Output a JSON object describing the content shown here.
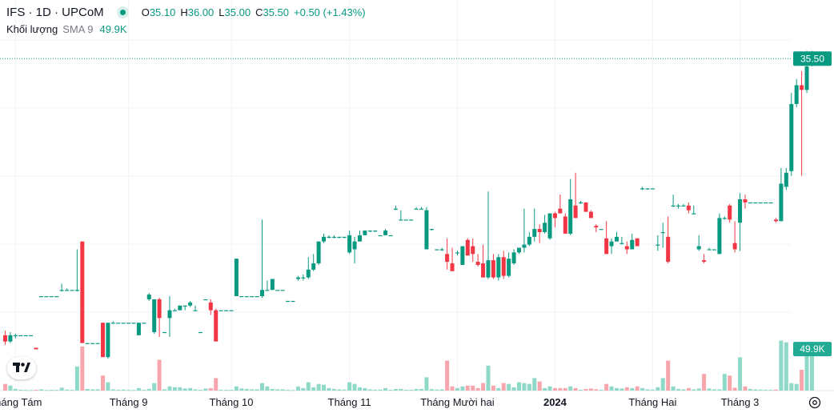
{
  "header": {
    "title": "IFS · 1D · UPCoM",
    "ohlc": [
      {
        "k": "O",
        "v": "35.10"
      },
      {
        "k": "H",
        "v": "36.00"
      },
      {
        "k": "L",
        "v": "35.00"
      },
      {
        "k": "C",
        "v": "35.50"
      },
      {
        "k": "",
        "v": "+0.50 (+1.43%)"
      }
    ],
    "volume_label": "Khối lượng",
    "volume_sma": "SMA 9",
    "volume_value": "49.9K"
  },
  "colors": {
    "up": "#089981",
    "down": "#f23645",
    "vol_up": "#8fd9c8",
    "vol_down": "#f7a6ad",
    "grid": "#f0f3fa",
    "axis_text": "#131722"
  },
  "icons": {
    "logo": "tradingview-logo-icon",
    "settings": "settings-gear-icon"
  },
  "chart_data": {
    "type": "candlestick",
    "price_ylim": [
      16,
      37
    ],
    "volume_ylim": [
      0,
      100000
    ],
    "grid": true,
    "last_price_label": "35.50",
    "last_volume_label": "49.9K",
    "x_tick_labels": [
      {
        "label": "Tháng Tám",
        "index": 2,
        "bold": false
      },
      {
        "label": "Tháng 9",
        "index": 24,
        "bold": false
      },
      {
        "label": "Tháng 10",
        "index": 44,
        "bold": false
      },
      {
        "label": "Tháng 11",
        "index": 67,
        "bold": false
      },
      {
        "label": "Tháng Mười hai",
        "index": 88,
        "bold": false
      },
      {
        "label": "2024",
        "index": 107,
        "bold": true
      },
      {
        "label": "Tháng Hai",
        "index": 126,
        "bold": false
      },
      {
        "label": "Tháng 3",
        "index": 143,
        "bold": false
      }
    ],
    "candles": [
      [
        17.8,
        18.1,
        17.2,
        17.4,
        8000
      ],
      [
        17.4,
        18.0,
        17.3,
        17.8,
        6000
      ],
      [
        17.8,
        17.9,
        17.6,
        17.8,
        2000
      ],
      [
        17.8,
        17.8,
        17.8,
        17.8,
        1000
      ],
      [
        17.8,
        17.8,
        17.8,
        17.8,
        800
      ],
      [
        17.8,
        17.8,
        17.8,
        17.8,
        700
      ],
      [
        17.0,
        17.0,
        16.9,
        16.9,
        900
      ],
      [
        20.3,
        20.3,
        20.3,
        20.3,
        1500
      ],
      [
        20.3,
        20.3,
        20.3,
        20.3,
        700
      ],
      [
        20.3,
        20.3,
        20.3,
        20.3,
        900
      ],
      [
        20.3,
        20.3,
        20.3,
        20.3,
        800
      ],
      [
        20.7,
        21.1,
        20.6,
        20.7,
        3500
      ],
      [
        20.7,
        20.8,
        20.7,
        20.7,
        1200
      ],
      [
        20.7,
        20.7,
        20.7,
        20.7,
        900
      ],
      [
        20.7,
        23.3,
        20.6,
        20.7,
        29000
      ],
      [
        23.8,
        23.8,
        17.3,
        17.3,
        53000
      ],
      [
        17.3,
        17.3,
        17.3,
        17.3,
        2000
      ],
      [
        17.3,
        17.3,
        17.3,
        17.3,
        1500
      ],
      [
        17.3,
        17.3,
        17.3,
        17.3,
        1500
      ],
      [
        18.6,
        18.6,
        16.4,
        16.4,
        18000
      ],
      [
        16.4,
        18.6,
        16.3,
        18.6,
        10000
      ],
      [
        18.6,
        18.7,
        18.6,
        18.6,
        1500
      ],
      [
        18.6,
        18.6,
        18.6,
        18.6,
        900
      ],
      [
        18.6,
        18.6,
        18.6,
        18.6,
        1200
      ],
      [
        18.6,
        18.6,
        18.6,
        18.6,
        800
      ],
      [
        18.6,
        18.6,
        18.6,
        18.6,
        700
      ],
      [
        17.8,
        18.6,
        17.8,
        18.6,
        3000
      ],
      [
        18.6,
        18.6,
        18.6,
        18.6,
        900
      ],
      [
        20.1,
        20.5,
        20.0,
        20.4,
        2000
      ],
      [
        18.0,
        20.1,
        17.9,
        20.1,
        9000
      ],
      [
        20.1,
        20.2,
        17.7,
        18.9,
        37000
      ],
      [
        18.0,
        18.0,
        18.0,
        18.0,
        1500
      ],
      [
        18.9,
        20.3,
        17.7,
        19.4,
        5000
      ],
      [
        19.4,
        19.5,
        19.4,
        19.4,
        4000
      ],
      [
        19.4,
        19.7,
        19.4,
        19.7,
        4000
      ],
      [
        19.7,
        19.7,
        19.4,
        19.7,
        2500
      ],
      [
        19.7,
        20.0,
        19.6,
        19.9,
        3000
      ],
      [
        19.4,
        19.7,
        19.4,
        19.4,
        1500
      ],
      [
        18.0,
        18.0,
        18.0,
        18.0,
        900
      ],
      [
        20.1,
        20.1,
        20.1,
        20.1,
        2500
      ],
      [
        19.9,
        20.1,
        19.1,
        19.4,
        3000
      ],
      [
        19.4,
        19.5,
        17.4,
        17.4,
        15000
      ],
      [
        19.4,
        19.4,
        19.4,
        19.4,
        900
      ],
      [
        19.4,
        19.4,
        19.4,
        19.4,
        800
      ],
      [
        19.4,
        19.4,
        19.4,
        19.4,
        900
      ],
      [
        20.3,
        22.7,
        20.3,
        22.7,
        5000
      ],
      [
        20.3,
        20.3,
        20.3,
        20.3,
        2500
      ],
      [
        20.3,
        20.3,
        20.3,
        20.3,
        2000
      ],
      [
        20.3,
        20.3,
        20.3,
        20.3,
        1500
      ],
      [
        20.3,
        20.3,
        20.3,
        20.3,
        1500
      ],
      [
        20.3,
        25.2,
        20.2,
        20.7,
        9000
      ],
      [
        20.7,
        21.3,
        20.7,
        20.7,
        5000
      ],
      [
        20.7,
        21.4,
        20.7,
        21.4,
        2000
      ],
      [
        20.7,
        20.7,
        20.7,
        20.7,
        1500
      ],
      [
        20.7,
        20.7,
        20.7,
        20.7,
        1500
      ],
      [
        20.0,
        20.0,
        20.0,
        20.0,
        800
      ],
      [
        20.0,
        20.0,
        20.0,
        20.0,
        700
      ],
      [
        21.4,
        21.6,
        21.3,
        21.5,
        5000
      ],
      [
        21.5,
        21.7,
        21.3,
        21.5,
        3000
      ],
      [
        21.5,
        22.8,
        21.4,
        22.0,
        10000
      ],
      [
        22.0,
        23.0,
        21.9,
        22.4,
        4000
      ],
      [
        22.4,
        23.8,
        22.3,
        23.8,
        8000
      ],
      [
        23.8,
        24.3,
        23.7,
        24.1,
        7000
      ],
      [
        24.1,
        24.2,
        24.0,
        24.1,
        3000
      ],
      [
        24.1,
        24.2,
        24.0,
        24.1,
        2000
      ],
      [
        24.1,
        24.1,
        24.0,
        24.1,
        1500
      ],
      [
        24.1,
        24.1,
        24.0,
        24.1,
        1200
      ],
      [
        23.1,
        24.5,
        23.0,
        24.2,
        10000
      ],
      [
        23.3,
        24.1,
        22.4,
        23.8,
        8000
      ],
      [
        23.8,
        24.5,
        23.8,
        24.2,
        4000
      ],
      [
        24.2,
        24.5,
        24.2,
        24.5,
        3000
      ],
      [
        24.5,
        24.5,
        24.4,
        24.5,
        1500
      ],
      [
        24.5,
        24.5,
        24.4,
        24.5,
        1000
      ],
      [
        24.2,
        24.2,
        24.2,
        24.2,
        1200
      ],
      [
        24.2,
        24.6,
        24.2,
        24.5,
        3000
      ],
      [
        24.2,
        24.2,
        24.2,
        24.2,
        900
      ],
      [
        25.9,
        26.1,
        25.8,
        25.9,
        2000
      ],
      [
        25.2,
        25.8,
        25.2,
        25.2,
        2000
      ],
      [
        25.2,
        25.2,
        25.2,
        25.2,
        1000
      ],
      [
        25.2,
        25.2,
        25.2,
        25.2,
        900
      ],
      [
        25.9,
        26.0,
        25.9,
        25.9,
        2000
      ],
      [
        25.9,
        26.0,
        25.9,
        25.9,
        2000
      ],
      [
        23.3,
        26.0,
        23.3,
        25.8,
        16000
      ],
      [
        24.6,
        24.6,
        24.5,
        24.6,
        1800
      ],
      [
        23.3,
        23.3,
        23.3,
        23.3,
        1200
      ],
      [
        23.3,
        23.4,
        23.2,
        23.3,
        1500
      ],
      [
        23.0,
        24.0,
        22.0,
        22.5,
        36000
      ],
      [
        22.4,
        23.4,
        21.9,
        21.9,
        5000
      ],
      [
        23.1,
        23.2,
        22.9,
        23.1,
        3000
      ],
      [
        22.3,
        23.5,
        22.3,
        23.5,
        5000
      ],
      [
        23.9,
        24.0,
        22.9,
        22.9,
        6000
      ],
      [
        23.5,
        24.0,
        22.5,
        23.0,
        6000
      ],
      [
        22.5,
        23.0,
        22.2,
        22.3,
        3000
      ],
      [
        22.4,
        23.6,
        21.5,
        21.5,
        9000
      ],
      [
        21.5,
        27.0,
        21.4,
        22.6,
        30000
      ],
      [
        22.6,
        23.0,
        21.4,
        21.5,
        6000
      ],
      [
        21.5,
        23.0,
        21.3,
        22.8,
        3000
      ],
      [
        22.8,
        23.2,
        21.4,
        21.6,
        9000
      ],
      [
        21.6,
        23.1,
        21.5,
        22.7,
        8000
      ],
      [
        22.4,
        23.3,
        22.3,
        23.1,
        4000
      ],
      [
        23.1,
        23.4,
        23.0,
        23.4,
        10000
      ],
      [
        23.4,
        25.9,
        23.1,
        23.6,
        9000
      ],
      [
        23.6,
        24.4,
        23.5,
        24.1,
        8000
      ],
      [
        24.1,
        25.9,
        23.8,
        24.6,
        15000
      ],
      [
        24.6,
        24.9,
        23.7,
        24.4,
        11000
      ],
      [
        24.4,
        25.5,
        24.3,
        25.0,
        3000
      ],
      [
        24.0,
        25.6,
        23.9,
        25.6,
        5000
      ],
      [
        25.6,
        25.7,
        24.7,
        25.3,
        3000
      ],
      [
        25.9,
        26.8,
        25.6,
        25.6,
        3000
      ],
      [
        25.4,
        25.6,
        24.3,
        24.3,
        3000
      ],
      [
        24.3,
        27.8,
        24.2,
        26.5,
        5000
      ],
      [
        26.1,
        28.2,
        25.3,
        25.3,
        3000
      ],
      [
        26.3,
        26.4,
        26.2,
        26.3,
        1000
      ],
      [
        26.3,
        26.3,
        25.7,
        25.7,
        2000
      ],
      [
        25.7,
        25.8,
        25.3,
        25.3,
        2500
      ],
      [
        24.8,
        24.9,
        24.4,
        24.7,
        1500
      ],
      [
        24.6,
        24.6,
        24.6,
        24.6,
        1000
      ],
      [
        24.0,
        25.1,
        23.0,
        23.0,
        8000
      ],
      [
        23.5,
        24.0,
        23.0,
        23.8,
        5000
      ],
      [
        23.8,
        24.4,
        23.8,
        24.1,
        3000
      ],
      [
        23.7,
        24.1,
        23.6,
        23.7,
        2500
      ],
      [
        23.5,
        23.8,
        23.0,
        23.3,
        4000
      ],
      [
        23.3,
        24.3,
        23.3,
        23.9,
        3000
      ],
      [
        24.0,
        24.0,
        23.5,
        23.5,
        5000
      ],
      [
        27.2,
        27.3,
        27.1,
        27.2,
        3000
      ],
      [
        27.2,
        27.2,
        27.1,
        27.2,
        1500
      ],
      [
        27.2,
        27.2,
        27.2,
        27.2,
        1200
      ],
      [
        23.6,
        24.2,
        23.2,
        23.6,
        4000
      ],
      [
        24.4,
        25.0,
        23.4,
        24.4,
        15000
      ],
      [
        24.1,
        25.4,
        22.4,
        22.5,
        36000
      ],
      [
        26.1,
        26.8,
        26.0,
        26.1,
        5000
      ],
      [
        26.1,
        26.2,
        25.9,
        26.1,
        2000
      ],
      [
        26.1,
        26.2,
        26.1,
        26.1,
        1500
      ],
      [
        26.1,
        26.3,
        25.6,
        25.8,
        3000
      ],
      [
        25.6,
        26.1,
        25.6,
        25.6,
        1500
      ],
      [
        23.3,
        24.2,
        23.2,
        23.5,
        2500
      ],
      [
        22.6,
        23.0,
        22.4,
        22.5,
        20000
      ],
      [
        23.3,
        23.4,
        23.3,
        23.3,
        2500
      ],
      [
        23.3,
        23.3,
        23.3,
        23.3,
        1500
      ],
      [
        23.0,
        25.6,
        23.0,
        25.3,
        1500
      ],
      [
        25.3,
        25.4,
        25.2,
        25.3,
        20000
      ],
      [
        26.1,
        26.2,
        25.0,
        25.2,
        18000
      ],
      [
        23.7,
        25.1,
        23.1,
        23.3,
        3500
      ],
      [
        25.0,
        26.9,
        23.2,
        26.5,
        40000
      ],
      [
        26.5,
        26.8,
        25.9,
        26.3,
        5000
      ],
      [
        26.3,
        26.3,
        26.3,
        26.3,
        2000
      ],
      [
        26.3,
        26.3,
        26.3,
        26.3,
        1500
      ],
      [
        26.3,
        26.3,
        26.3,
        26.3,
        1200
      ],
      [
        26.3,
        26.3,
        26.3,
        26.3,
        1000
      ],
      [
        26.3,
        26.3,
        26.3,
        26.3,
        1000
      ],
      [
        25.2,
        25.3,
        25.0,
        25.1,
        1200
      ],
      [
        25.1,
        28.5,
        25.1,
        27.5,
        60000
      ],
      [
        27.3,
        28.5,
        27.1,
        28.2,
        58000
      ],
      [
        28.3,
        33.3,
        28.0,
        32.6,
        9000
      ],
      [
        32.6,
        34.2,
        32.4,
        33.8,
        8000
      ],
      [
        33.8,
        34.7,
        28.0,
        33.5,
        25000
      ],
      [
        33.5,
        36.0,
        33.3,
        35.0,
        55000
      ],
      [
        35.1,
        36.0,
        35.0,
        35.5,
        49900
      ]
    ]
  }
}
